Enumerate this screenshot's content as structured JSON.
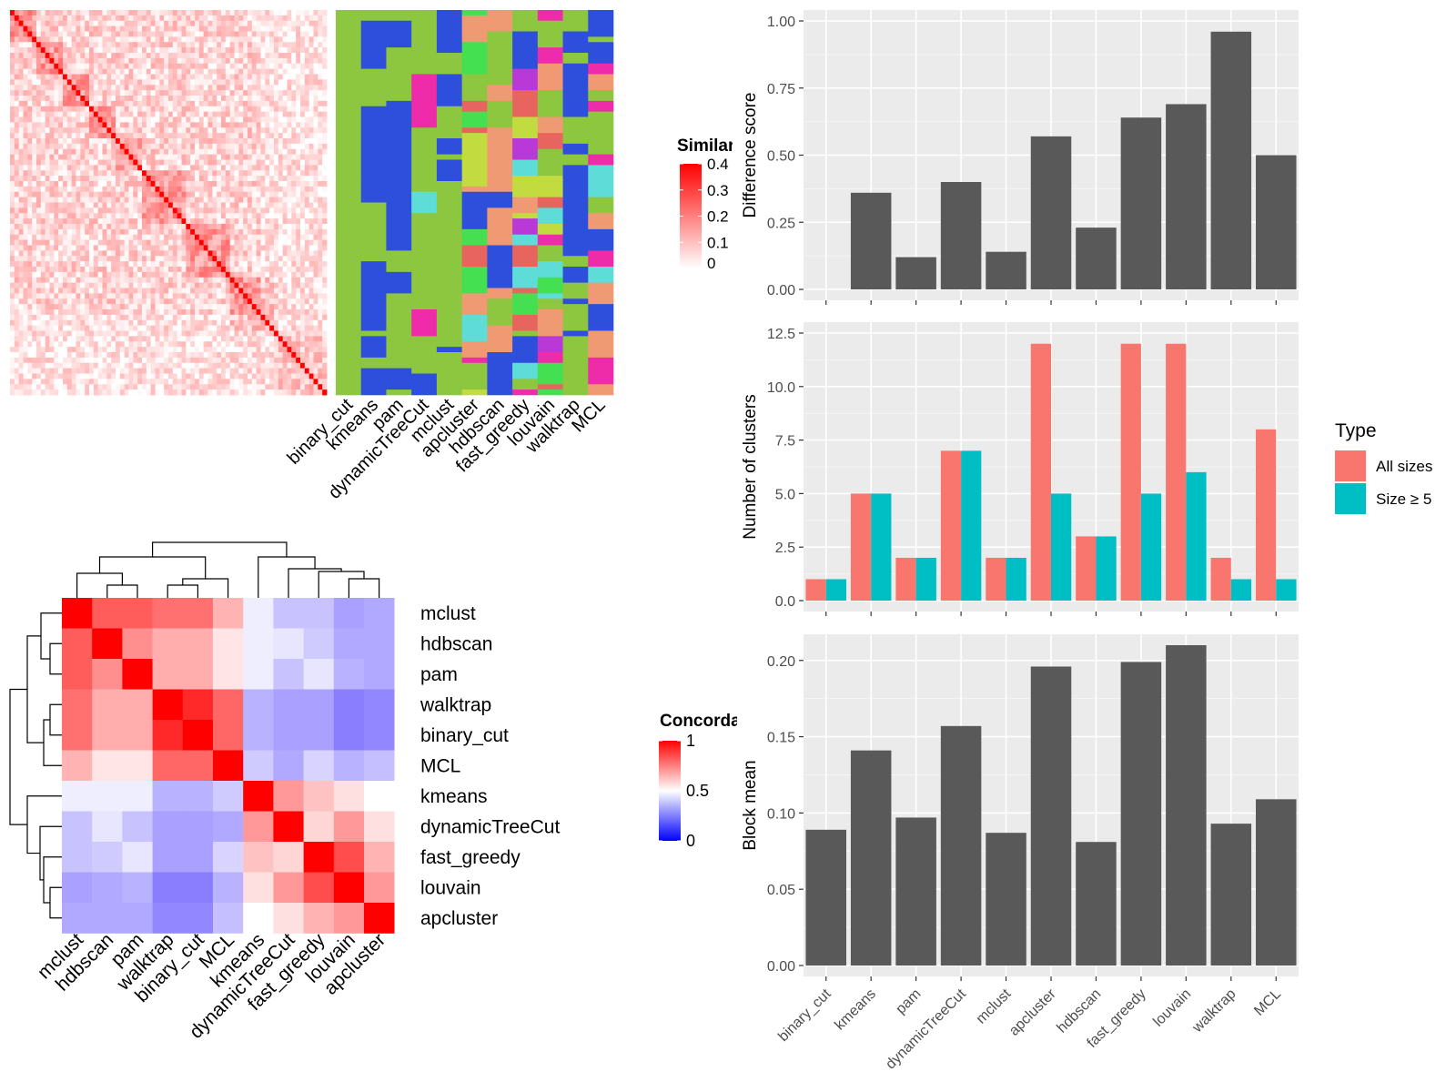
{
  "methods": [
    "binary_cut",
    "kmeans",
    "pam",
    "dynamicTreeCut",
    "mclust",
    "apcluster",
    "hdbscan",
    "fast_greedy",
    "louvain",
    "walktrap",
    "MCL"
  ],
  "similarity_heatmap": {
    "legend_title": "Similarity",
    "legend_ticks": [
      "0.4",
      "0.3",
      "0.2",
      "0.1",
      "0"
    ],
    "legend_tick_values": [
      0.4,
      0.3,
      0.2,
      0.1,
      0
    ],
    "value_range": [
      0,
      0.4
    ],
    "color_low": "#ffffff",
    "color_high": "#ff0000",
    "n_terms": 72
  },
  "cluster_assignment": {
    "column_labels": [
      "binary_cut",
      "kmeans",
      "pam",
      "dynamicTreeCut",
      "mclust",
      "apcluster",
      "hdbscan",
      "fast_greedy",
      "louvain",
      "walktrap",
      "MCL"
    ],
    "palette": [
      "#8dc63f",
      "#2d4fdb",
      "#f09a74",
      "#ee2ba8",
      "#5edcd8",
      "#e8655f",
      "#c2dc3f",
      "#45e052",
      "#b838d8",
      "#2f7ea0",
      "#51c0cf"
    ],
    "background": "#8dc63f"
  },
  "concordance_heatmap": {
    "legend_title": "Concordance",
    "legend_ticks": [
      "1",
      "0.5",
      "0"
    ],
    "legend_tick_values": [
      1,
      0.5,
      0
    ],
    "color_low": "#0000ff",
    "color_mid": "#ffffff",
    "color_high": "#ff0000",
    "row_labels": [
      "mclust",
      "hdbscan",
      "pam",
      "walktrap",
      "binary_cut",
      "MCL",
      "kmeans",
      "dynamicTreeCut",
      "fast_greedy",
      "louvain",
      "apcluster"
    ],
    "col_labels": [
      "mclust",
      "hdbscan",
      "pam",
      "walktrap",
      "binary_cut",
      "MCL",
      "kmeans",
      "dynamicTreeCut",
      "fast_greedy",
      "louvain",
      "apcluster"
    ],
    "matrix": [
      [
        1.0,
        0.82,
        0.82,
        0.78,
        0.78,
        0.65,
        0.46,
        0.36,
        0.36,
        0.28,
        0.3
      ],
      [
        0.82,
        1.0,
        0.72,
        0.66,
        0.66,
        0.55,
        0.46,
        0.44,
        0.38,
        0.3,
        0.3
      ],
      [
        0.82,
        0.72,
        1.0,
        0.66,
        0.66,
        0.55,
        0.46,
        0.36,
        0.44,
        0.32,
        0.3
      ],
      [
        0.78,
        0.66,
        0.66,
        1.0,
        0.92,
        0.8,
        0.32,
        0.28,
        0.28,
        0.2,
        0.22
      ],
      [
        0.78,
        0.66,
        0.66,
        0.92,
        1.0,
        0.8,
        0.32,
        0.28,
        0.28,
        0.2,
        0.22
      ],
      [
        0.65,
        0.55,
        0.55,
        0.8,
        0.8,
        1.0,
        0.38,
        0.3,
        0.4,
        0.32,
        0.35
      ],
      [
        0.46,
        0.46,
        0.46,
        0.32,
        0.32,
        0.38,
        1.0,
        0.7,
        0.62,
        0.56,
        0.5
      ],
      [
        0.36,
        0.44,
        0.36,
        0.28,
        0.28,
        0.3,
        0.7,
        1.0,
        0.58,
        0.7,
        0.56
      ],
      [
        0.36,
        0.38,
        0.44,
        0.28,
        0.28,
        0.4,
        0.62,
        0.58,
        1.0,
        0.85,
        0.65
      ],
      [
        0.28,
        0.3,
        0.32,
        0.2,
        0.2,
        0.32,
        0.56,
        0.7,
        0.85,
        1.0,
        0.7
      ],
      [
        0.3,
        0.3,
        0.3,
        0.22,
        0.22,
        0.35,
        0.5,
        0.56,
        0.65,
        0.7,
        1.0
      ]
    ]
  },
  "chart_data": [
    {
      "type": "bar",
      "ylabel": "Difference score",
      "categories": [
        "binary_cut",
        "kmeans",
        "pam",
        "dynamicTreeCut",
        "mclust",
        "apcluster",
        "hdbscan",
        "fast_greedy",
        "louvain",
        "walktrap",
        "MCL"
      ],
      "values": [
        0.0,
        0.36,
        0.12,
        0.4,
        0.14,
        0.57,
        0.23,
        0.64,
        0.69,
        0.96,
        0.5
      ],
      "ylim": [
        0,
        1.0
      ],
      "yticks": [
        "0.00",
        "0.25",
        "0.50",
        "0.75",
        "1.00"
      ],
      "ytick_values": [
        0,
        0.25,
        0.5,
        0.75,
        1.0
      ],
      "bar_color": "#595959",
      "panel_bg": "#ebebeb",
      "grid": true
    },
    {
      "type": "bar",
      "ylabel": "Number of clusters",
      "categories": [
        "binary_cut",
        "kmeans",
        "pam",
        "dynamicTreeCut",
        "mclust",
        "apcluster",
        "hdbscan",
        "fast_greedy",
        "louvain",
        "walktrap",
        "MCL"
      ],
      "series": [
        {
          "name": "All sizes",
          "color": "#f8766d",
          "values": [
            1,
            5,
            2,
            7,
            2,
            12,
            3,
            12,
            12,
            2,
            8
          ]
        },
        {
          "name": "Size ≥ 5",
          "color": "#00bfc4",
          "values": [
            1,
            5,
            2,
            7,
            2,
            5,
            3,
            5,
            6,
            1,
            1
          ]
        }
      ],
      "legend_title": "Type",
      "legend_position": "right",
      "ylim": [
        0,
        12.5
      ],
      "yticks": [
        "0.0",
        "2.5",
        "5.0",
        "7.5",
        "10.0",
        "12.5"
      ],
      "ytick_values": [
        0,
        2.5,
        5,
        7.5,
        10,
        12.5
      ],
      "panel_bg": "#ebebeb",
      "grid": true
    },
    {
      "type": "bar",
      "ylabel": "Block mean",
      "categories": [
        "binary_cut",
        "kmeans",
        "pam",
        "dynamicTreeCut",
        "mclust",
        "apcluster",
        "hdbscan",
        "fast_greedy",
        "louvain",
        "walktrap",
        "MCL"
      ],
      "values": [
        0.089,
        0.141,
        0.097,
        0.157,
        0.087,
        0.196,
        0.081,
        0.199,
        0.21,
        0.093,
        0.109
      ],
      "ylim": [
        0,
        0.21
      ],
      "yticks": [
        "0.00",
        "0.05",
        "0.10",
        "0.15",
        "0.20"
      ],
      "ytick_values": [
        0,
        0.05,
        0.1,
        0.15,
        0.2
      ],
      "bar_color": "#595959",
      "panel_bg": "#ebebeb",
      "grid": true
    }
  ]
}
